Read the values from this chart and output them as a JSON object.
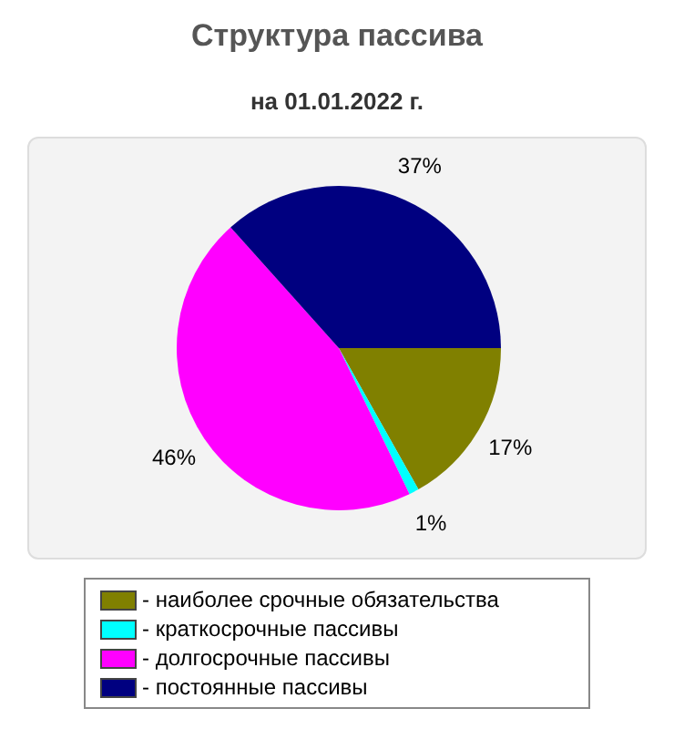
{
  "chart_data": {
    "type": "pie",
    "title": "Структура пассива",
    "subtitle": "на 01.01.2022 г.",
    "categories": [
      "- наиболее срочные обязательства",
      "- краткосрочные пассивы",
      "- долгосрочные пассивы",
      "- постоянные пассивы"
    ],
    "values": [
      17,
      1,
      46,
      37
    ],
    "colors": [
      "#808000",
      "#00ffff",
      "#ff00ff",
      "#000080"
    ],
    "value_labels": [
      "17%",
      "1%",
      "46%",
      "37%"
    ],
    "legend": "bottom"
  }
}
